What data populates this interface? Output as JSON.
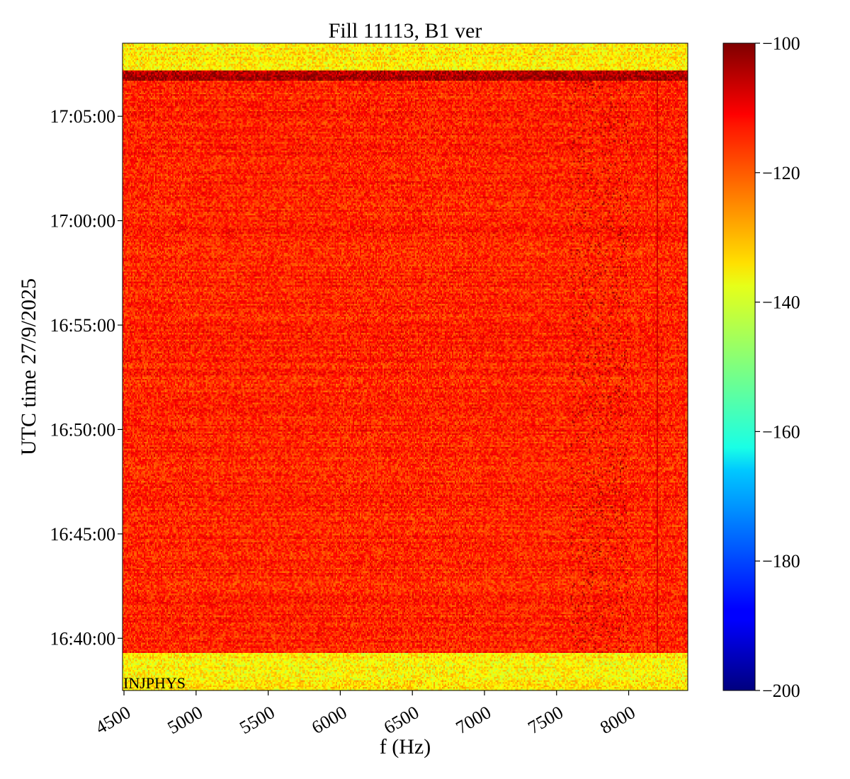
{
  "chart_data": {
    "type": "heatmap",
    "title": "Fill 11113, B1 ver",
    "xlabel": "f (Hz)",
    "ylabel": "UTC time 27/9/2025",
    "xlim": [
      4490,
      8410
    ],
    "x_ticks": [
      "4500",
      "5000",
      "5500",
      "6000",
      "6500",
      "7000",
      "7500",
      "8000"
    ],
    "x_tick_values": [
      4500,
      5000,
      5500,
      6000,
      6500,
      7000,
      7500,
      8000
    ],
    "ylim": [
      "16:37:30",
      "17:08:30"
    ],
    "y_ticks": [
      "16:40:00",
      "16:45:00",
      "16:50:00",
      "16:55:00",
      "17:00:00",
      "17:05:00"
    ],
    "colorbar": {
      "colormap": "jet",
      "range": [
        -200,
        -100
      ],
      "ticks": [
        "-100",
        "-120",
        "-140",
        "-160",
        "-180",
        "-200"
      ],
      "tick_values": [
        -100,
        -120,
        -140,
        -160,
        -180,
        -200
      ]
    },
    "annotation": "INJPHYS",
    "regions": [
      {
        "time_start": "16:37:30",
        "time_end": "16:39:20",
        "level_db": -136,
        "description": "low-level band before injection"
      },
      {
        "time_start": "16:39:20",
        "time_end": "17:06:40",
        "level_db": -116,
        "description": "main spectrum"
      },
      {
        "time_start": "17:06:40",
        "time_end": "17:07:10",
        "level_db": -104,
        "description": "high-level strip"
      },
      {
        "time_start": "17:07:10",
        "time_end": "17:08:30",
        "level_db": -136,
        "description": "low-level band after"
      }
    ],
    "features": [
      {
        "f_hz": 7800,
        "description": "strong lines near 7800-8000 Hz",
        "level_db": -104
      },
      {
        "f_hz": 8200,
        "description": "weak vertical line",
        "level_db": -108
      }
    ]
  }
}
